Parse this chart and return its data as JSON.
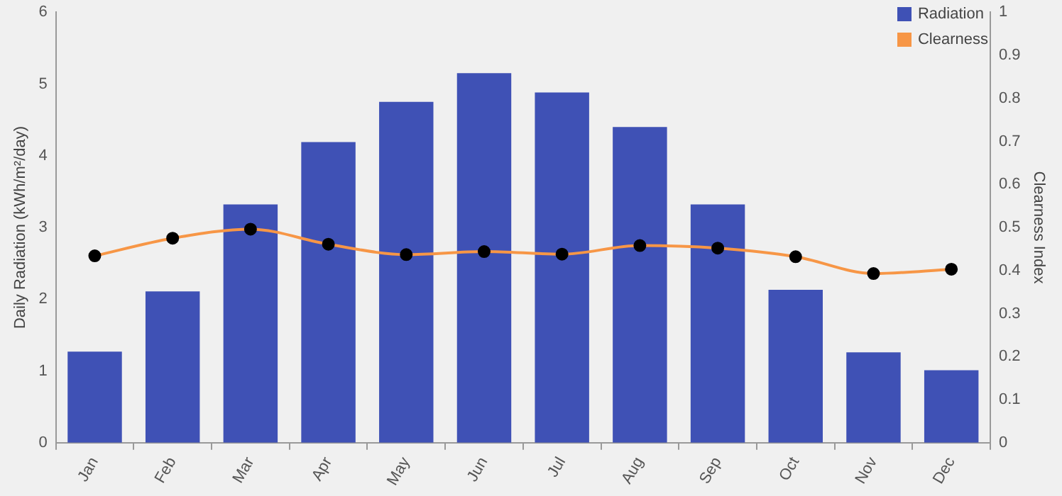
{
  "chart_data": {
    "type": "bar",
    "categories": [
      "Jan",
      "Feb",
      "Mar",
      "Apr",
      "May",
      "Jun",
      "Jul",
      "Aug",
      "Sep",
      "Oct",
      "Nov",
      "Dec"
    ],
    "ylabel": "Daily Radiation (kWh/m²/day)",
    "y2label": "Clearness Index",
    "series": [
      {
        "name": "Radiation",
        "color": "#3f51b5",
        "values": [
          1.27,
          2.11,
          3.32,
          4.19,
          4.75,
          5.15,
          4.88,
          4.4,
          3.32,
          2.13,
          1.26,
          1.01
        ]
      },
      {
        "name": "Clearness",
        "type": "line",
        "axis": "y2",
        "color": "#f79646",
        "marker": "circle",
        "values": [
          0.434,
          0.475,
          0.496,
          0.461,
          0.437,
          0.444,
          0.438,
          0.458,
          0.452,
          0.432,
          0.393,
          0.403
        ]
      }
    ],
    "ylim": [
      0,
      6
    ],
    "yticks": [
      0,
      1,
      2,
      3,
      4,
      5,
      6
    ],
    "y2lim": [
      0,
      1
    ],
    "y2ticks": [
      0,
      0.1,
      0.2,
      0.3,
      0.4,
      0.5,
      0.6,
      0.7,
      0.8,
      0.9,
      1
    ],
    "grid": false,
    "legend": "top right"
  }
}
